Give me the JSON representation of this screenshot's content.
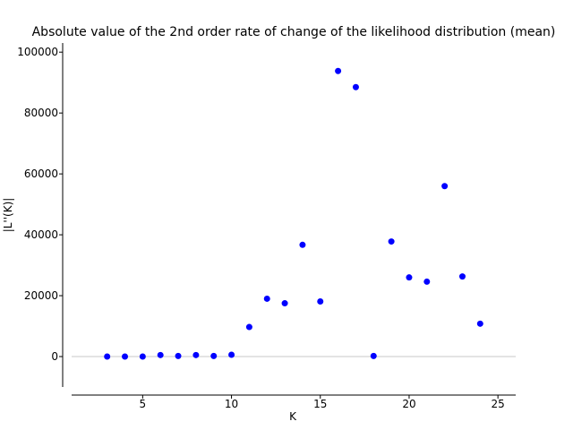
{
  "chart_data": {
    "type": "scatter",
    "title": "Absolute value of the 2nd order rate of change of the likelihood distribution (mean)",
    "xlabel": "K",
    "ylabel": "|L''(K)|",
    "xlim": [
      1,
      26
    ],
    "ylim": [
      -10000,
      103000
    ],
    "xticks": [
      5,
      10,
      15,
      20,
      25
    ],
    "yticks": [
      0,
      20000,
      40000,
      60000,
      80000,
      100000
    ],
    "grid": false,
    "zero_line": true,
    "marker_color": "#0000ff",
    "zero_line_color": "#c8c8c8",
    "series": [
      {
        "x": [
          3,
          4,
          5,
          6,
          7,
          8,
          9,
          10,
          11,
          12,
          13,
          14,
          15,
          16,
          17,
          18,
          19,
          20,
          21,
          22,
          23,
          24
        ],
        "y": [
          0,
          0,
          0,
          500,
          200,
          500,
          200,
          600,
          9700,
          19000,
          17500,
          36700,
          18100,
          93800,
          88500,
          200,
          37800,
          26000,
          24600,
          56000,
          26300,
          10800
        ]
      }
    ]
  }
}
